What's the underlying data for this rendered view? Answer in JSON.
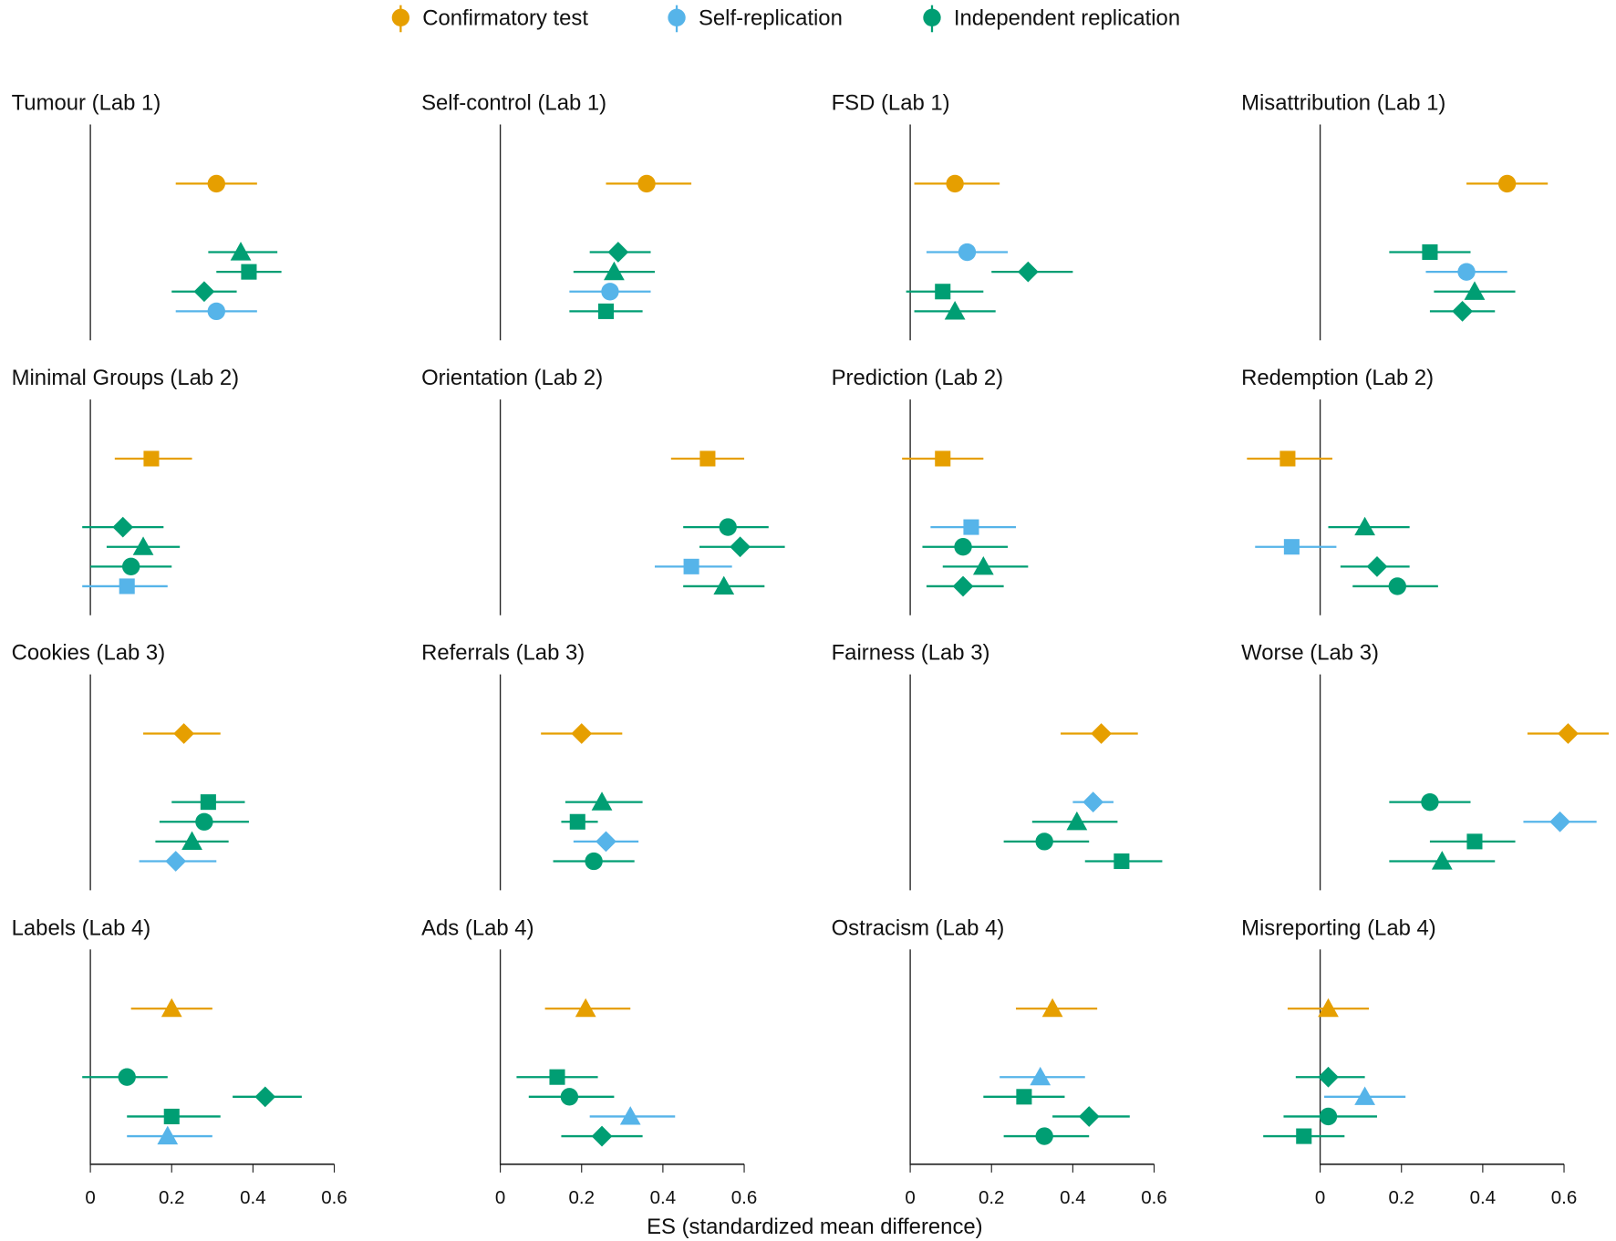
{
  "legend": [
    {
      "series": "confirmatory",
      "label": "Confirmatory test",
      "color": "#E69F00"
    },
    {
      "series": "self",
      "label": "Self-replication",
      "color": "#56B4E9"
    },
    {
      "series": "independent",
      "label": "Independent replication",
      "color": "#009E73"
    }
  ],
  "xlabel": "ES (standardized mean difference)",
  "xticks": [
    0,
    0.2,
    0.4,
    0.6
  ],
  "xtick_labels": [
    "0",
    "0.2",
    "0.4",
    "0.6"
  ],
  "chart_data": [
    {
      "type": "scatter",
      "title": "Tumour (Lab 1)",
      "points": [
        {
          "series": "confirmatory",
          "shape": "circle",
          "es": 0.31,
          "ci": [
            0.21,
            0.41
          ]
        },
        {
          "series": "independent",
          "shape": "triangle",
          "es": 0.37,
          "ci": [
            0.29,
            0.46
          ]
        },
        {
          "series": "independent",
          "shape": "square",
          "es": 0.39,
          "ci": [
            0.31,
            0.47
          ]
        },
        {
          "series": "independent",
          "shape": "diamond",
          "es": 0.28,
          "ci": [
            0.2,
            0.36
          ]
        },
        {
          "series": "self",
          "shape": "circle",
          "es": 0.31,
          "ci": [
            0.21,
            0.41
          ]
        }
      ]
    },
    {
      "type": "scatter",
      "title": "Self-control (Lab 1)",
      "points": [
        {
          "series": "confirmatory",
          "shape": "circle",
          "es": 0.36,
          "ci": [
            0.26,
            0.47
          ]
        },
        {
          "series": "independent",
          "shape": "diamond",
          "es": 0.29,
          "ci": [
            0.22,
            0.37
          ]
        },
        {
          "series": "independent",
          "shape": "triangle",
          "es": 0.28,
          "ci": [
            0.18,
            0.38
          ]
        },
        {
          "series": "self",
          "shape": "circle",
          "es": 0.27,
          "ci": [
            0.17,
            0.37
          ]
        },
        {
          "series": "independent",
          "shape": "square",
          "es": 0.26,
          "ci": [
            0.17,
            0.35
          ]
        }
      ]
    },
    {
      "type": "scatter",
      "title": "FSD (Lab 1)",
      "points": [
        {
          "series": "confirmatory",
          "shape": "circle",
          "es": 0.11,
          "ci": [
            0.01,
            0.22
          ]
        },
        {
          "series": "self",
          "shape": "circle",
          "es": 0.14,
          "ci": [
            0.04,
            0.24
          ]
        },
        {
          "series": "independent",
          "shape": "diamond",
          "es": 0.29,
          "ci": [
            0.2,
            0.4
          ]
        },
        {
          "series": "independent",
          "shape": "square",
          "es": 0.08,
          "ci": [
            -0.01,
            0.18
          ]
        },
        {
          "series": "independent",
          "shape": "triangle",
          "es": 0.11,
          "ci": [
            0.01,
            0.21
          ]
        }
      ]
    },
    {
      "type": "scatter",
      "title": "Misattribution (Lab 1)",
      "points": [
        {
          "series": "confirmatory",
          "shape": "circle",
          "es": 0.46,
          "ci": [
            0.36,
            0.56
          ]
        },
        {
          "series": "independent",
          "shape": "square",
          "es": 0.27,
          "ci": [
            0.17,
            0.37
          ]
        },
        {
          "series": "self",
          "shape": "circle",
          "es": 0.36,
          "ci": [
            0.26,
            0.46
          ]
        },
        {
          "series": "independent",
          "shape": "triangle",
          "es": 0.38,
          "ci": [
            0.28,
            0.48
          ]
        },
        {
          "series": "independent",
          "shape": "diamond",
          "es": 0.35,
          "ci": [
            0.27,
            0.43
          ]
        }
      ]
    },
    {
      "type": "scatter",
      "title": "Minimal Groups (Lab 2)",
      "points": [
        {
          "series": "confirmatory",
          "shape": "square",
          "es": 0.15,
          "ci": [
            0.06,
            0.25
          ]
        },
        {
          "series": "independent",
          "shape": "diamond",
          "es": 0.08,
          "ci": [
            -0.02,
            0.18
          ]
        },
        {
          "series": "independent",
          "shape": "triangle",
          "es": 0.13,
          "ci": [
            0.04,
            0.22
          ]
        },
        {
          "series": "independent",
          "shape": "circle",
          "es": 0.1,
          "ci": [
            0.0,
            0.2
          ]
        },
        {
          "series": "self",
          "shape": "square",
          "es": 0.09,
          "ci": [
            -0.02,
            0.19
          ]
        }
      ]
    },
    {
      "type": "scatter",
      "title": "Orientation (Lab 2)",
      "points": [
        {
          "series": "confirmatory",
          "shape": "square",
          "es": 0.51,
          "ci": [
            0.42,
            0.6
          ]
        },
        {
          "series": "independent",
          "shape": "circle",
          "es": 0.56,
          "ci": [
            0.45,
            0.66
          ]
        },
        {
          "series": "independent",
          "shape": "diamond",
          "es": 0.59,
          "ci": [
            0.49,
            0.7
          ]
        },
        {
          "series": "self",
          "shape": "square",
          "es": 0.47,
          "ci": [
            0.38,
            0.57
          ]
        },
        {
          "series": "independent",
          "shape": "triangle",
          "es": 0.55,
          "ci": [
            0.45,
            0.65
          ]
        }
      ]
    },
    {
      "type": "scatter",
      "title": "Prediction (Lab 2)",
      "points": [
        {
          "series": "confirmatory",
          "shape": "square",
          "es": 0.08,
          "ci": [
            -0.02,
            0.18
          ]
        },
        {
          "series": "self",
          "shape": "square",
          "es": 0.15,
          "ci": [
            0.05,
            0.26
          ]
        },
        {
          "series": "independent",
          "shape": "circle",
          "es": 0.13,
          "ci": [
            0.03,
            0.24
          ]
        },
        {
          "series": "independent",
          "shape": "triangle",
          "es": 0.18,
          "ci": [
            0.08,
            0.29
          ]
        },
        {
          "series": "independent",
          "shape": "diamond",
          "es": 0.13,
          "ci": [
            0.04,
            0.23
          ]
        }
      ]
    },
    {
      "type": "scatter",
      "title": "Redemption (Lab 2)",
      "points": [
        {
          "series": "confirmatory",
          "shape": "square",
          "es": -0.08,
          "ci": [
            -0.18,
            0.03
          ]
        },
        {
          "series": "independent",
          "shape": "triangle",
          "es": 0.11,
          "ci": [
            0.02,
            0.22
          ]
        },
        {
          "series": "self",
          "shape": "square",
          "es": -0.07,
          "ci": [
            -0.16,
            0.04
          ]
        },
        {
          "series": "independent",
          "shape": "diamond",
          "es": 0.14,
          "ci": [
            0.05,
            0.22
          ]
        },
        {
          "series": "independent",
          "shape": "circle",
          "es": 0.19,
          "ci": [
            0.08,
            0.29
          ]
        }
      ]
    },
    {
      "type": "scatter",
      "title": "Cookies (Lab 3)",
      "points": [
        {
          "series": "confirmatory",
          "shape": "diamond",
          "es": 0.23,
          "ci": [
            0.13,
            0.32
          ]
        },
        {
          "series": "independent",
          "shape": "square",
          "es": 0.29,
          "ci": [
            0.2,
            0.38
          ]
        },
        {
          "series": "independent",
          "shape": "circle",
          "es": 0.28,
          "ci": [
            0.17,
            0.39
          ]
        },
        {
          "series": "independent",
          "shape": "triangle",
          "es": 0.25,
          "ci": [
            0.16,
            0.34
          ]
        },
        {
          "series": "self",
          "shape": "diamond",
          "es": 0.21,
          "ci": [
            0.12,
            0.31
          ]
        }
      ]
    },
    {
      "type": "scatter",
      "title": "Referrals (Lab 3)",
      "points": [
        {
          "series": "confirmatory",
          "shape": "diamond",
          "es": 0.2,
          "ci": [
            0.1,
            0.3
          ]
        },
        {
          "series": "independent",
          "shape": "triangle",
          "es": 0.25,
          "ci": [
            0.16,
            0.35
          ]
        },
        {
          "series": "independent",
          "shape": "square",
          "es": 0.19,
          "ci": [
            0.15,
            0.24
          ]
        },
        {
          "series": "self",
          "shape": "diamond",
          "es": 0.26,
          "ci": [
            0.18,
            0.34
          ]
        },
        {
          "series": "independent",
          "shape": "circle",
          "es": 0.23,
          "ci": [
            0.13,
            0.33
          ]
        }
      ]
    },
    {
      "type": "scatter",
      "title": "Fairness (Lab 3)",
      "points": [
        {
          "series": "confirmatory",
          "shape": "diamond",
          "es": 0.47,
          "ci": [
            0.37,
            0.56
          ]
        },
        {
          "series": "self",
          "shape": "diamond",
          "es": 0.45,
          "ci": [
            0.4,
            0.5
          ]
        },
        {
          "series": "independent",
          "shape": "triangle",
          "es": 0.41,
          "ci": [
            0.3,
            0.51
          ]
        },
        {
          "series": "independent",
          "shape": "circle",
          "es": 0.33,
          "ci": [
            0.23,
            0.44
          ]
        },
        {
          "series": "independent",
          "shape": "square",
          "es": 0.52,
          "ci": [
            0.43,
            0.62
          ]
        }
      ]
    },
    {
      "type": "scatter",
      "title": "Worse (Lab 3)",
      "points": [
        {
          "series": "confirmatory",
          "shape": "diamond",
          "es": 0.61,
          "ci": [
            0.51,
            0.71
          ]
        },
        {
          "series": "independent",
          "shape": "circle",
          "es": 0.27,
          "ci": [
            0.17,
            0.37
          ]
        },
        {
          "series": "self",
          "shape": "diamond",
          "es": 0.59,
          "ci": [
            0.5,
            0.68
          ]
        },
        {
          "series": "independent",
          "shape": "square",
          "es": 0.38,
          "ci": [
            0.27,
            0.48
          ]
        },
        {
          "series": "independent",
          "shape": "triangle",
          "es": 0.3,
          "ci": [
            0.17,
            0.43
          ]
        }
      ]
    },
    {
      "type": "scatter",
      "title": "Labels (Lab 4)",
      "points": [
        {
          "series": "confirmatory",
          "shape": "triangle",
          "es": 0.2,
          "ci": [
            0.1,
            0.3
          ]
        },
        {
          "series": "independent",
          "shape": "circle",
          "es": 0.09,
          "ci": [
            -0.02,
            0.19
          ]
        },
        {
          "series": "independent",
          "shape": "diamond",
          "es": 0.43,
          "ci": [
            0.35,
            0.52
          ]
        },
        {
          "series": "independent",
          "shape": "square",
          "es": 0.2,
          "ci": [
            0.09,
            0.32
          ]
        },
        {
          "series": "self",
          "shape": "triangle",
          "es": 0.19,
          "ci": [
            0.09,
            0.3
          ]
        }
      ]
    },
    {
      "type": "scatter",
      "title": "Ads (Lab 4)",
      "points": [
        {
          "series": "confirmatory",
          "shape": "triangle",
          "es": 0.21,
          "ci": [
            0.11,
            0.32
          ]
        },
        {
          "series": "independent",
          "shape": "square",
          "es": 0.14,
          "ci": [
            0.04,
            0.24
          ]
        },
        {
          "series": "independent",
          "shape": "circle",
          "es": 0.17,
          "ci": [
            0.07,
            0.28
          ]
        },
        {
          "series": "self",
          "shape": "triangle",
          "es": 0.32,
          "ci": [
            0.22,
            0.43
          ]
        },
        {
          "series": "independent",
          "shape": "diamond",
          "es": 0.25,
          "ci": [
            0.15,
            0.35
          ]
        }
      ]
    },
    {
      "type": "scatter",
      "title": "Ostracism (Lab 4)",
      "points": [
        {
          "series": "confirmatory",
          "shape": "triangle",
          "es": 0.35,
          "ci": [
            0.26,
            0.46
          ]
        },
        {
          "series": "self",
          "shape": "triangle",
          "es": 0.32,
          "ci": [
            0.22,
            0.43
          ]
        },
        {
          "series": "independent",
          "shape": "square",
          "es": 0.28,
          "ci": [
            0.18,
            0.38
          ]
        },
        {
          "series": "independent",
          "shape": "diamond",
          "es": 0.44,
          "ci": [
            0.35,
            0.54
          ]
        },
        {
          "series": "independent",
          "shape": "circle",
          "es": 0.33,
          "ci": [
            0.23,
            0.44
          ]
        }
      ]
    },
    {
      "type": "scatter",
      "title": "Misreporting (Lab 4)",
      "points": [
        {
          "series": "confirmatory",
          "shape": "triangle",
          "es": 0.02,
          "ci": [
            -0.08,
            0.12
          ]
        },
        {
          "series": "independent",
          "shape": "diamond",
          "es": 0.02,
          "ci": [
            -0.06,
            0.11
          ]
        },
        {
          "series": "self",
          "shape": "triangle",
          "es": 0.11,
          "ci": [
            0.01,
            0.21
          ]
        },
        {
          "series": "independent",
          "shape": "circle",
          "es": 0.02,
          "ci": [
            -0.09,
            0.14
          ]
        },
        {
          "series": "independent",
          "shape": "square",
          "es": -0.04,
          "ci": [
            -0.14,
            0.06
          ]
        }
      ]
    }
  ]
}
